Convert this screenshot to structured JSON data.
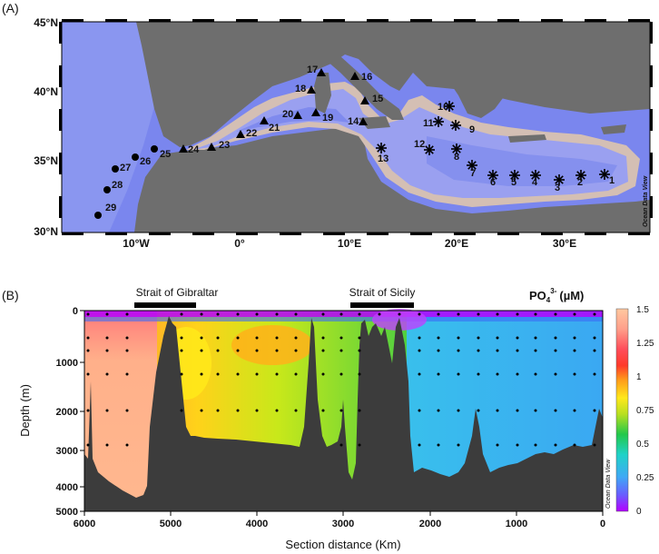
{
  "panel_a": {
    "label": "(A)",
    "lat_ticks": [
      "45°N",
      "40°N",
      "35°N",
      "30°N"
    ],
    "lon_ticks": [
      "10°W",
      "0°",
      "10°E",
      "20°E",
      "30°E"
    ],
    "watermark": "Ocean Data View",
    "stations": [
      {
        "id": "1",
        "marker": "star"
      },
      {
        "id": "2",
        "marker": "star"
      },
      {
        "id": "3",
        "marker": "star"
      },
      {
        "id": "4",
        "marker": "star"
      },
      {
        "id": "5",
        "marker": "star"
      },
      {
        "id": "6",
        "marker": "star"
      },
      {
        "id": "7",
        "marker": "star"
      },
      {
        "id": "8",
        "marker": "star"
      },
      {
        "id": "9",
        "marker": "star"
      },
      {
        "id": "10",
        "marker": "star"
      },
      {
        "id": "11",
        "marker": "star"
      },
      {
        "id": "12",
        "marker": "star"
      },
      {
        "id": "13",
        "marker": "star"
      },
      {
        "id": "14",
        "marker": "triangle"
      },
      {
        "id": "15",
        "marker": "triangle"
      },
      {
        "id": "16",
        "marker": "triangle"
      },
      {
        "id": "17",
        "marker": "triangle"
      },
      {
        "id": "18",
        "marker": "triangle"
      },
      {
        "id": "19",
        "marker": "triangle"
      },
      {
        "id": "20",
        "marker": "triangle"
      },
      {
        "id": "21",
        "marker": "triangle"
      },
      {
        "id": "22",
        "marker": "triangle"
      },
      {
        "id": "23",
        "marker": "triangle"
      },
      {
        "id": "24",
        "marker": "triangle"
      },
      {
        "id": "25",
        "marker": "circle"
      },
      {
        "id": "26",
        "marker": "circle"
      },
      {
        "id": "27",
        "marker": "circle"
      },
      {
        "id": "28",
        "marker": "circle"
      },
      {
        "id": "29",
        "marker": "circle"
      }
    ]
  },
  "panel_b": {
    "label": "(B)",
    "strait_1": "Strait of Gibraltar",
    "strait_2": "Strait of Sicily",
    "title_main": "PO",
    "title_sub": "4",
    "title_sup": "3-",
    "title_unit": "(µM)",
    "ylabel": "Depth (m)",
    "xlabel": "Section distance (Km)",
    "depth_ticks": [
      "0",
      "1000",
      "2000",
      "3000",
      "4000",
      "5000"
    ],
    "distance_ticks": [
      "6000",
      "5000",
      "4000",
      "3000",
      "2000",
      "1000",
      "0"
    ],
    "colorbar_ticks": [
      "1.5",
      "1.25",
      "1",
      "0.75",
      "0.5",
      "0.25",
      "0"
    ],
    "watermark": "Ocean Data View"
  },
  "colors": {
    "land": "#6e6e6e",
    "ocean_deep": "#7a86ee",
    "ocean_shelf": "#d4bfb4",
    "seafloor": "#3c3c3c"
  }
}
